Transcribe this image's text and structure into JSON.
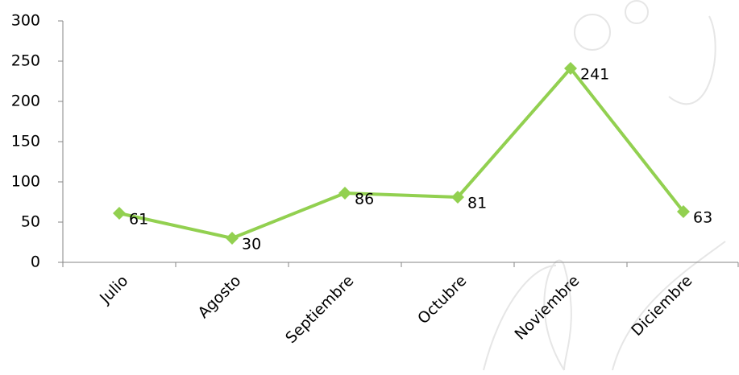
{
  "chart_data": {
    "type": "line",
    "categories": [
      "Julio",
      "Agosto",
      "Septiembre",
      "Octubre",
      "Noviembre",
      "Diciembre"
    ],
    "values": [
      61,
      30,
      86,
      81,
      241,
      63
    ],
    "color": "#92d050",
    "ylim": [
      0,
      300
    ],
    "yticks": [
      0,
      50,
      100,
      150,
      200,
      250,
      300
    ]
  }
}
